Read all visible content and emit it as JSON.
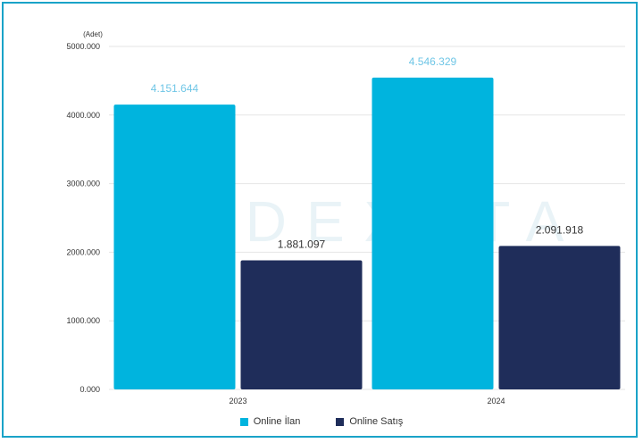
{
  "chart_data": {
    "type": "bar",
    "unit_label": "(Adet)",
    "categories": [
      "2023",
      "2024"
    ],
    "series": [
      {
        "name": "Online İlan",
        "color": "#00b4de",
        "values": [
          4151644,
          4546329
        ],
        "labels": [
          "4.151.644",
          "4.546.329"
        ]
      },
      {
        "name": "Online Satış",
        "color": "#1f2d5a",
        "values": [
          1881097,
          2091918
        ],
        "labels": [
          "1.881.097",
          "2.091.918"
        ]
      }
    ],
    "yticks": [
      "0.000",
      "1000.000",
      "2000.000",
      "3000.000",
      "4000.000",
      "5000.000"
    ],
    "ylim": [
      0,
      5000000
    ],
    "grid": true,
    "legend_position": "bottom",
    "watermark": "INDEXATA",
    "colors": {
      "border": "#1aa3c8",
      "grid": "#e6e6e6"
    }
  }
}
